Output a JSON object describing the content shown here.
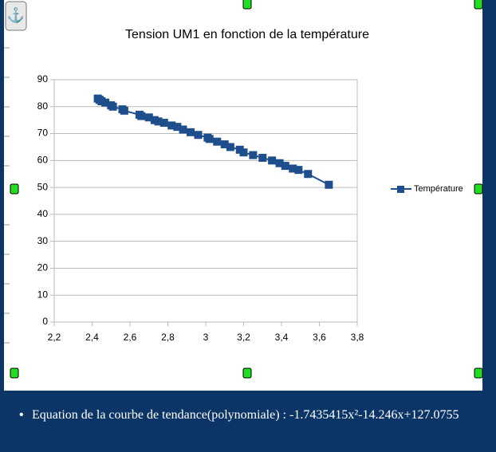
{
  "chart_data": {
    "type": "line",
    "title": "Tension UM1 en fonction de la température",
    "x": [
      2.43,
      2.44,
      2.45,
      2.47,
      2.5,
      2.51,
      2.56,
      2.57,
      2.65,
      2.66,
      2.7,
      2.73,
      2.75,
      2.78,
      2.82,
      2.85,
      2.88,
      2.92,
      2.96,
      3.01,
      3.02,
      3.06,
      3.1,
      3.13,
      3.18,
      3.2,
      3.25,
      3.3,
      3.35,
      3.39,
      3.42,
      3.46,
      3.49,
      3.54,
      3.65
    ],
    "series": [
      {
        "name": "Température",
        "color": "#1f4e8c",
        "values": [
          83,
          82.5,
          82,
          81.5,
          80.5,
          80,
          79,
          78.5,
          77,
          76.5,
          76,
          75,
          74.5,
          74,
          73,
          72.5,
          71.5,
          70.5,
          69.5,
          68.5,
          68,
          67,
          66,
          65,
          64,
          63,
          62,
          61,
          60,
          59,
          58,
          57,
          56.5,
          55,
          51
        ]
      }
    ],
    "xlim": [
      2.2,
      3.8
    ],
    "xticks": [
      {
        "value": 2.2,
        "label": "2,2"
      },
      {
        "value": 2.4,
        "label": "2,4"
      },
      {
        "value": 2.6,
        "label": "2,6"
      },
      {
        "value": 2.8,
        "label": "2,8"
      },
      3,
      {
        "value": 3.2,
        "label": "3,2"
      },
      {
        "value": 3.4,
        "label": "3,4"
      },
      {
        "value": 3.6,
        "label": "3,6"
      },
      {
        "value": 3.8,
        "label": "3,8"
      }
    ],
    "ylim": [
      0,
      90
    ],
    "yticks": [
      0,
      10,
      20,
      30,
      40,
      50,
      60,
      70,
      80,
      90
    ],
    "grid": true,
    "legend": "right",
    "marker": "square"
  },
  "bullet": "Equation de la courbe de tendance(polynomiale) : -1.7435415x²-14.246x+127.0755"
}
